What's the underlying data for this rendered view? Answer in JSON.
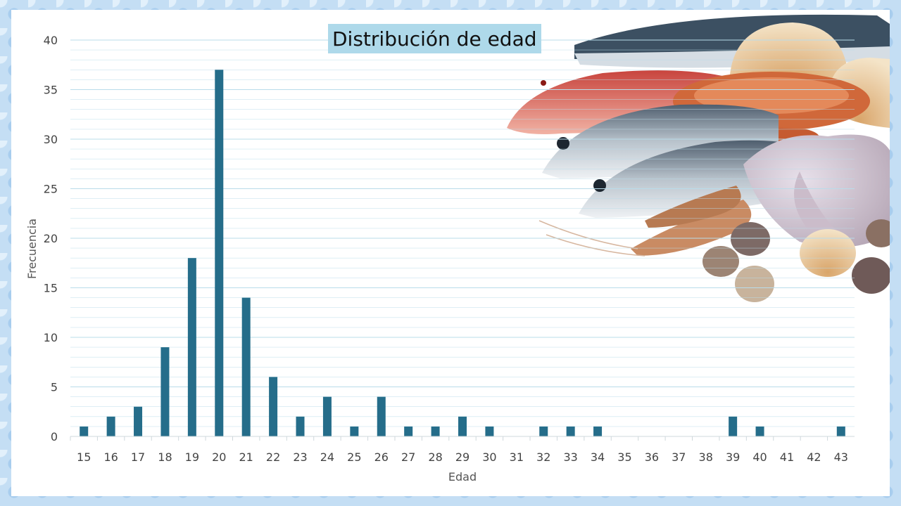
{
  "chart_data": {
    "type": "bar",
    "title": "Distribución de edad",
    "xlabel": "Edad",
    "ylabel": "Frecuencia",
    "ylim": [
      0,
      40
    ],
    "yticks": [
      0,
      5,
      10,
      15,
      20,
      25,
      30,
      35,
      40
    ],
    "grid": true,
    "categories": [
      "15",
      "16",
      "17",
      "18",
      "19",
      "20",
      "21",
      "22",
      "23",
      "24",
      "25",
      "26",
      "27",
      "28",
      "29",
      "30",
      "31",
      "32",
      "33",
      "34",
      "35",
      "36",
      "37",
      "38",
      "39",
      "40",
      "41",
      "42",
      "43"
    ],
    "values": [
      1,
      2,
      3,
      9,
      18,
      37,
      14,
      6,
      2,
      4,
      1,
      4,
      1,
      1,
      2,
      1,
      0,
      1,
      1,
      1,
      0,
      0,
      0,
      0,
      2,
      1,
      0,
      0,
      1
    ],
    "bar_color": "#256d8a"
  },
  "decoration": {
    "image": "seafood-photo",
    "colors": {
      "title_background": "#aed9ea",
      "page_background": "#c4def4",
      "grid": "#b9dcea"
    }
  }
}
